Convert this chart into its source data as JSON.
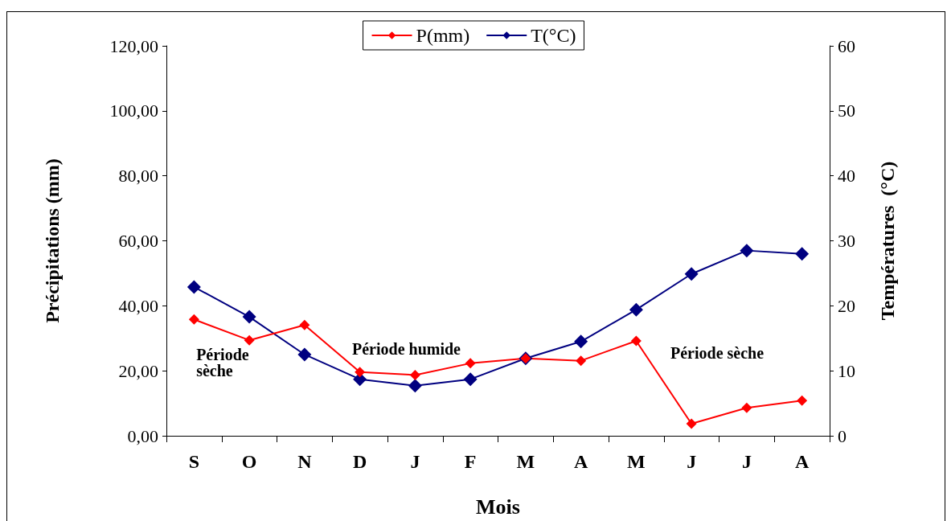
{
  "chart_data": {
    "type": "line",
    "xlabel": "Mois",
    "ylabel": "Précipitations (mm)",
    "y2label": "Températures  (°C)",
    "categories": [
      "S",
      "O",
      "N",
      "D",
      "J",
      "F",
      "M",
      "A",
      "M",
      "J",
      "J",
      "A"
    ],
    "series": [
      {
        "name": "P(mm)",
        "color": "#ff0000",
        "values": [
          35.8,
          29.4,
          34.1,
          19.6,
          18.7,
          22.3,
          23.8,
          23.1,
          29.2,
          3.7,
          8.6,
          10.8
        ]
      },
      {
        "name": "T(°C)",
        "color": "#000080",
        "axis": "y2",
        "values": [
          22.9,
          18.3,
          12.5,
          8.7,
          7.7,
          8.7,
          11.9,
          14.5,
          19.4,
          24.9,
          28.5,
          28.0
        ]
      }
    ],
    "ylim": [
      0,
      120
    ],
    "yticks": [
      {
        "value": 0,
        "label": "0,00"
      },
      {
        "value": 20,
        "label": "20,00"
      },
      {
        "value": 40,
        "label": "40,00"
      },
      {
        "value": 60,
        "label": "60,00"
      },
      {
        "value": 80,
        "label": "80,00"
      },
      {
        "value": 100,
        "label": "100,00"
      },
      {
        "value": 120,
        "label": "120,00"
      }
    ],
    "y2lim": [
      0,
      60
    ],
    "y2ticks": [
      0,
      10,
      20,
      30,
      40,
      50,
      60
    ],
    "annotations": [
      "Période sèche",
      "Période humide",
      "Période sèche"
    ],
    "marker": "diamond",
    "line_style": "solid",
    "grid": false,
    "legend": "top"
  }
}
